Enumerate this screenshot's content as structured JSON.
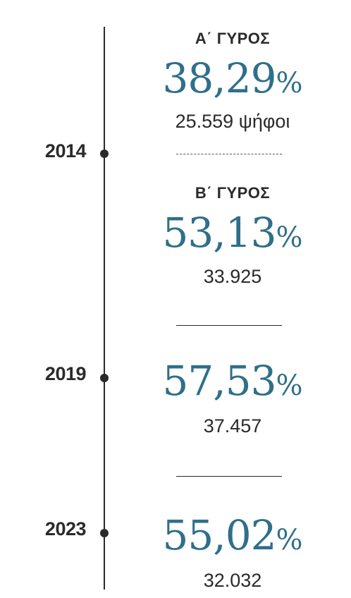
{
  "chart_data": {
    "type": "table",
    "entries": [
      {
        "year": "2014",
        "round": "Α΄ ΓΥΡΟΣ",
        "percent": "38,29",
        "percent_value": 38.29,
        "votes": "25.559 ψήφοι",
        "votes_value": 25559
      },
      {
        "year": "",
        "round": "Β΄ ΓΥΡΟΣ",
        "percent": "53,13",
        "percent_value": 53.13,
        "votes": "33.925",
        "votes_value": 33925
      },
      {
        "year": "2019",
        "round": "",
        "percent": "57,53",
        "percent_value": 57.53,
        "votes": "37.457",
        "votes_value": 37457
      },
      {
        "year": "2023",
        "round": "",
        "percent": "55,02",
        "percent_value": 55.02,
        "votes": "32.032",
        "votes_value": 32032
      }
    ],
    "percent_symbol": "%",
    "colors": {
      "accent": "#2f6f8a",
      "text": "#2a2a2a"
    }
  }
}
